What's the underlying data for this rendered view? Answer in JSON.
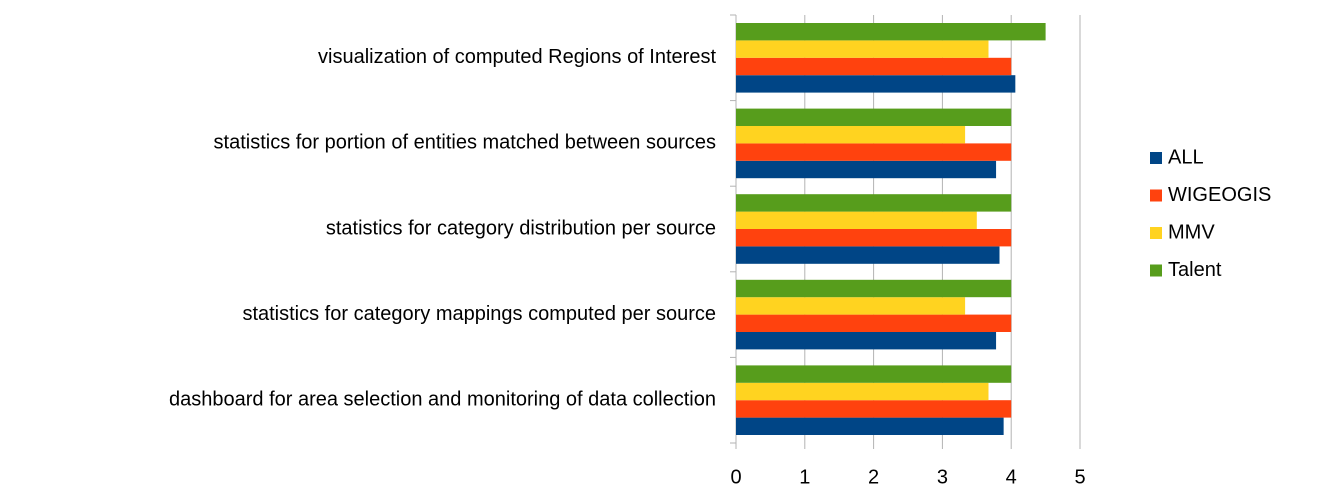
{
  "chart_data": {
    "type": "barh",
    "categories": [
      "visualization of computed Regions of Interest",
      "statistics for portion of entities matched between sources",
      "statistics for category distribution per source",
      "statistics for category mappings computed per source",
      "dashboard for area selection and monitoring of data collection"
    ],
    "series": [
      {
        "name": "ALL",
        "color": "#004586",
        "values": [
          4.06,
          3.78,
          3.83,
          3.78,
          3.89
        ]
      },
      {
        "name": "WIGEOGIS",
        "color": "#ff420e",
        "values": [
          4,
          4,
          4,
          4,
          4
        ]
      },
      {
        "name": "MMV",
        "color": "#ffd320",
        "values": [
          3.67,
          3.33,
          3.5,
          3.33,
          3.67
        ]
      },
      {
        "name": "Talent",
        "color": "#579d1c",
        "values": [
          4.5,
          4,
          4,
          4,
          4
        ]
      }
    ],
    "xlim": [
      0,
      5
    ],
    "xticks": [
      0,
      1,
      2,
      3,
      4,
      5
    ],
    "grid": true,
    "legend": "right"
  }
}
